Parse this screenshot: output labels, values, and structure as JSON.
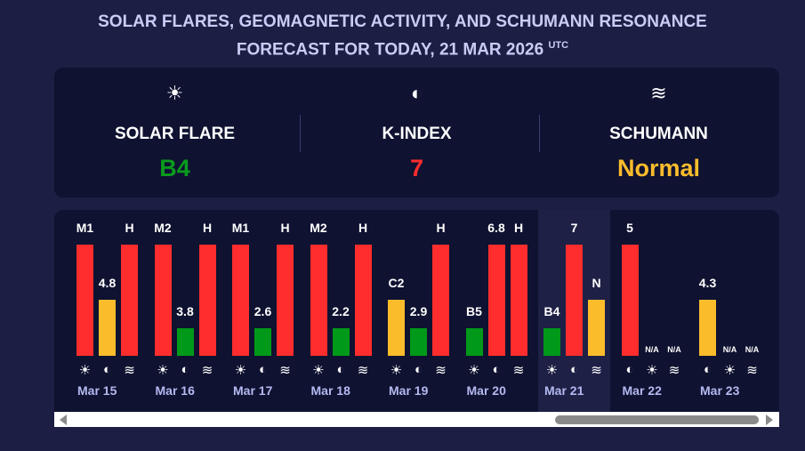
{
  "title": {
    "line1": "SOLAR FLARES, GEOMAGNETIC ACTIVITY, AND SCHUMANN RESONANCE",
    "line2": "FORECAST FOR TODAY, 21 MAR 2026",
    "tz": "UTC"
  },
  "summary": [
    {
      "icon": "sun-icon",
      "glyph": "☀",
      "label": "SOLAR FLARE",
      "value": "B4",
      "color": "#0a9a1e"
    },
    {
      "icon": "magnet-icon",
      "glyph": "◐",
      "label": "K-INDEX",
      "value": "7",
      "color": "#ff2d2d"
    },
    {
      "icon": "waves-icon",
      "glyph": "≋",
      "label": "SCHUMANN",
      "value": "Normal",
      "color": "#fbbc2c"
    }
  ],
  "colors": {
    "red": "#ff2d2d",
    "yellow": "#fbbc2c",
    "green": "#00991a"
  },
  "days": [
    {
      "date": "",
      "bars": [
        {
          "type": "schumann",
          "label": "H",
          "level": 3,
          "color": "red"
        }
      ],
      "partial": true
    },
    {
      "date": "Mar 15",
      "bars": [
        {
          "type": "solar",
          "label": "M1",
          "level": 3,
          "color": "red"
        },
        {
          "type": "kindex",
          "label": "4.8",
          "level": 2,
          "color": "yellow"
        },
        {
          "type": "schumann",
          "label": "H",
          "level": 3,
          "color": "red"
        }
      ]
    },
    {
      "date": "Mar 16",
      "bars": [
        {
          "type": "solar",
          "label": "M2",
          "level": 3,
          "color": "red"
        },
        {
          "type": "kindex",
          "label": "3.8",
          "level": 1,
          "color": "green"
        },
        {
          "type": "schumann",
          "label": "H",
          "level": 3,
          "color": "red"
        }
      ]
    },
    {
      "date": "Mar 17",
      "bars": [
        {
          "type": "solar",
          "label": "M1",
          "level": 3,
          "color": "red"
        },
        {
          "type": "kindex",
          "label": "2.6",
          "level": 1,
          "color": "green"
        },
        {
          "type": "schumann",
          "label": "H",
          "level": 3,
          "color": "red"
        }
      ]
    },
    {
      "date": "Mar 18",
      "bars": [
        {
          "type": "solar",
          "label": "M2",
          "level": 3,
          "color": "red"
        },
        {
          "type": "kindex",
          "label": "2.2",
          "level": 1,
          "color": "green"
        },
        {
          "type": "schumann",
          "label": "H",
          "level": 3,
          "color": "red"
        }
      ]
    },
    {
      "date": "Mar 19",
      "bars": [
        {
          "type": "solar",
          "label": "C2",
          "level": 2,
          "color": "yellow"
        },
        {
          "type": "kindex",
          "label": "2.9",
          "level": 1,
          "color": "green"
        },
        {
          "type": "schumann",
          "label": "H",
          "level": 3,
          "color": "red"
        }
      ]
    },
    {
      "date": "Mar 20",
      "bars": [
        {
          "type": "solar",
          "label": "B5",
          "level": 1,
          "color": "green"
        },
        {
          "type": "kindex",
          "label": "6.8",
          "level": 3,
          "color": "red"
        },
        {
          "type": "schumann",
          "label": "H",
          "level": 3,
          "color": "red"
        }
      ]
    },
    {
      "date": "Mar 21",
      "today": true,
      "bars": [
        {
          "type": "solar",
          "label": "B4",
          "level": 1,
          "color": "green"
        },
        {
          "type": "kindex",
          "label": "7",
          "level": 3,
          "color": "red"
        },
        {
          "type": "schumann",
          "label": "N",
          "level": 2,
          "color": "yellow"
        }
      ]
    },
    {
      "date": "Mar 22",
      "bars": [
        {
          "type": "kindex",
          "label": "5",
          "level": 3,
          "color": "red"
        },
        {
          "type": "solar",
          "label": "N/A",
          "level": 0
        },
        {
          "type": "schumann",
          "label": "N/A",
          "level": 0
        }
      ]
    },
    {
      "date": "Mar 23",
      "bars": [
        {
          "type": "kindex",
          "label": "4.3",
          "level": 2,
          "color": "yellow"
        },
        {
          "type": "solar",
          "label": "N/A",
          "level": 0
        },
        {
          "type": "schumann",
          "label": "N/A",
          "level": 0
        }
      ]
    }
  ]
}
